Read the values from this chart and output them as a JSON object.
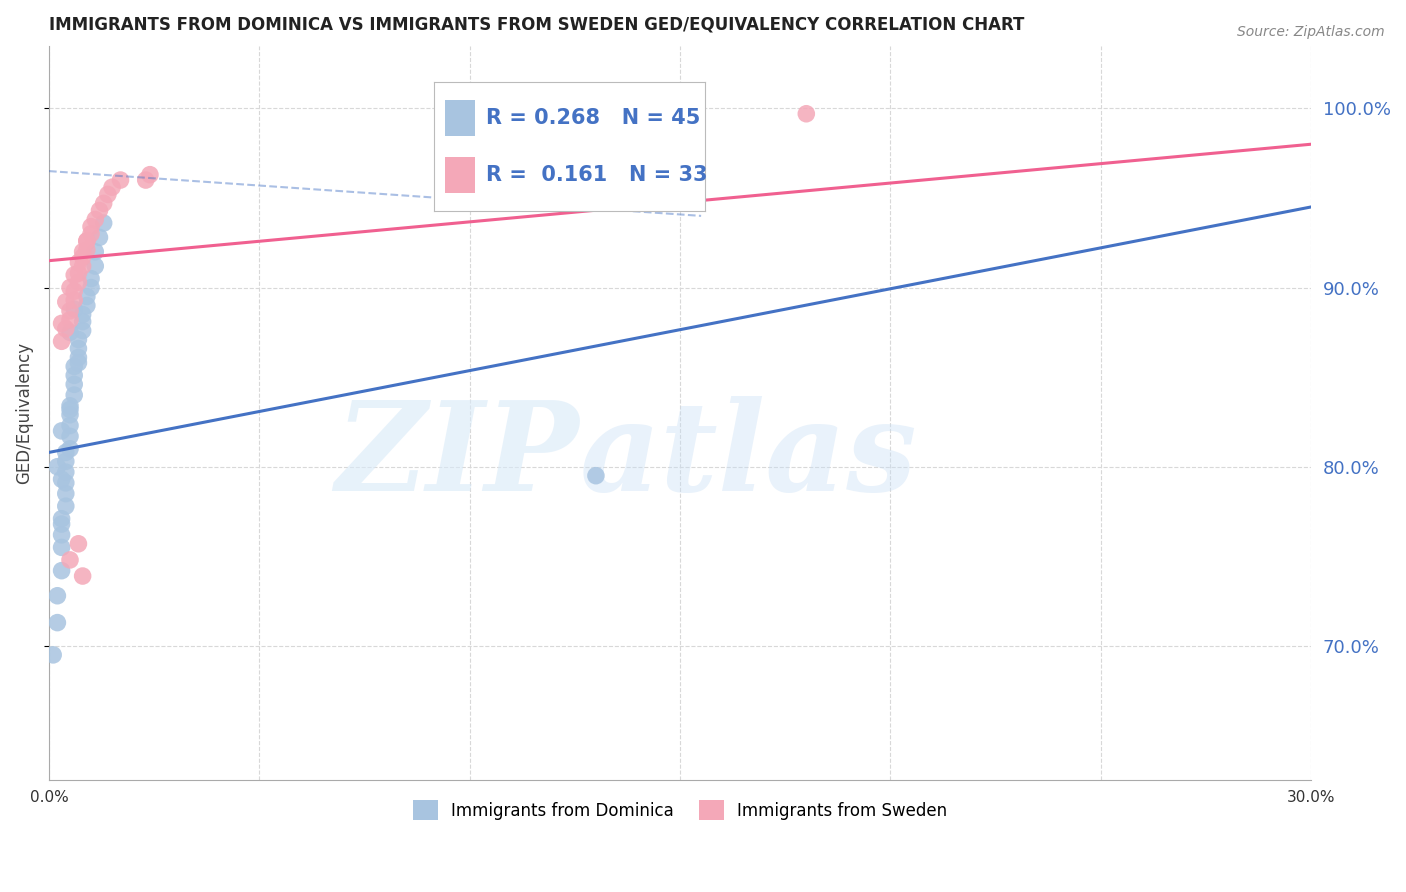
{
  "title": "IMMIGRANTS FROM DOMINICA VS IMMIGRANTS FROM SWEDEN GED/EQUIVALENCY CORRELATION CHART",
  "source": "Source: ZipAtlas.com",
  "ylabel": "GED/Equivalency",
  "ytick_values": [
    0.7,
    0.8,
    0.9,
    1.0
  ],
  "xlim": [
    0.0,
    0.3
  ],
  "ylim": [
    0.625,
    1.035
  ],
  "dominica_R": 0.268,
  "dominica_N": 45,
  "sweden_R": 0.161,
  "sweden_N": 33,
  "dominica_color": "#a8c4e0",
  "sweden_color": "#f4a8b8",
  "dominica_line_color": "#4472c4",
  "sweden_line_color": "#f06090",
  "legend_color": "#4472c4",
  "background_color": "#ffffff",
  "grid_color": "#d8d8d8",
  "dominica_x": [
    0.001,
    0.002,
    0.002,
    0.003,
    0.003,
    0.003,
    0.003,
    0.004,
    0.004,
    0.004,
    0.004,
    0.004,
    0.005,
    0.005,
    0.005,
    0.005,
    0.005,
    0.006,
    0.006,
    0.006,
    0.006,
    0.007,
    0.007,
    0.007,
    0.008,
    0.008,
    0.008,
    0.009,
    0.009,
    0.01,
    0.01,
    0.011,
    0.011,
    0.012,
    0.013,
    0.003,
    0.004,
    0.005,
    0.006,
    0.007,
    0.002,
    0.003,
    0.13,
    0.003,
    0.005
  ],
  "dominica_y": [
    0.695,
    0.713,
    0.728,
    0.742,
    0.755,
    0.762,
    0.771,
    0.778,
    0.785,
    0.791,
    0.797,
    0.803,
    0.81,
    0.817,
    0.823,
    0.829,
    0.834,
    0.84,
    0.846,
    0.851,
    0.856,
    0.861,
    0.866,
    0.871,
    0.876,
    0.881,
    0.885,
    0.89,
    0.895,
    0.9,
    0.905,
    0.912,
    0.92,
    0.928,
    0.936,
    0.82,
    0.808,
    0.875,
    0.888,
    0.858,
    0.8,
    0.793,
    0.795,
    0.768,
    0.832
  ],
  "sweden_x": [
    0.003,
    0.004,
    0.005,
    0.005,
    0.006,
    0.006,
    0.007,
    0.007,
    0.008,
    0.008,
    0.009,
    0.009,
    0.01,
    0.01,
    0.011,
    0.012,
    0.013,
    0.014,
    0.015,
    0.017,
    0.003,
    0.004,
    0.005,
    0.006,
    0.007,
    0.008,
    0.009,
    0.023,
    0.024,
    0.18,
    0.005,
    0.008,
    0.007
  ],
  "sweden_y": [
    0.87,
    0.877,
    0.882,
    0.887,
    0.893,
    0.898,
    0.903,
    0.908,
    0.912,
    0.917,
    0.921,
    0.926,
    0.93,
    0.934,
    0.938,
    0.943,
    0.947,
    0.952,
    0.956,
    0.96,
    0.88,
    0.892,
    0.9,
    0.907,
    0.914,
    0.92,
    0.926,
    0.96,
    0.963,
    0.997,
    0.748,
    0.739,
    0.757
  ],
  "blue_line_x": [
    0.0,
    0.3
  ],
  "blue_line_y": [
    0.808,
    0.945
  ],
  "pink_line_x": [
    0.0,
    0.3
  ],
  "pink_line_y": [
    0.915,
    0.98
  ],
  "dashed_line_x": [
    0.0,
    0.155
  ],
  "dashed_line_y": [
    0.965,
    0.94
  ],
  "watermark_zip": "ZIP",
  "watermark_atlas": "atlas"
}
